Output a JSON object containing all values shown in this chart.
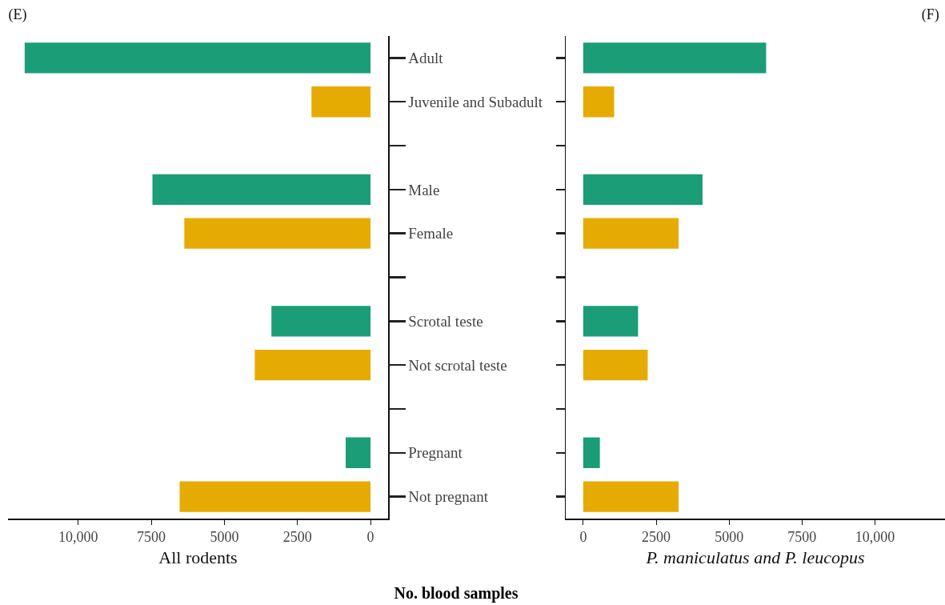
{
  "chart_data": [
    {
      "type": "bar",
      "title": "(E)",
      "xlabel": "All rodents",
      "orientation": "horizontal",
      "categories": [
        "Adult",
        "Juvenile and Subadult",
        null,
        "Male",
        "Female",
        null,
        "Scrotal teste",
        "Not scrotal teste",
        null,
        "Pregnant",
        "Not pregnant"
      ],
      "values": [
        11830,
        2020,
        null,
        7460,
        6370,
        null,
        3390,
        3960,
        null,
        850,
        6530
      ],
      "colors": [
        "#1b9e77",
        "#e6ab02",
        null,
        "#1b9e77",
        "#e6ab02",
        null,
        "#1b9e77",
        "#e6ab02",
        null,
        "#1b9e77",
        "#e6ab02"
      ],
      "xlim": [
        12400,
        -600
      ],
      "xticks": [
        {
          "value": 10000,
          "label": "10,000"
        },
        7500,
        5000,
        2500,
        0
      ],
      "grid": false,
      "annotations": [
        "No. blood samples"
      ]
    },
    {
      "type": "bar",
      "title": "(F)",
      "xlabel": "P. maniculatus and P. leucopus",
      "orientation": "horizontal",
      "categories": [
        null,
        null,
        null,
        null,
        null,
        null,
        null,
        null,
        null,
        null,
        null
      ],
      "values": [
        6270,
        1060,
        null,
        4090,
        3270,
        null,
        1880,
        2210,
        null,
        570,
        3270
      ],
      "colors": [
        "#1b9e77",
        "#e6ab02",
        null,
        "#1b9e77",
        "#e6ab02",
        null,
        "#1b9e77",
        "#e6ab02",
        null,
        "#1b9e77",
        "#e6ab02"
      ],
      "xlim": [
        -600,
        12400
      ],
      "xticks": [
        0,
        2500,
        5000,
        7500,
        {
          "value": 10000,
          "label": "10,000"
        }
      ],
      "grid": false,
      "tick_labels": "x"
    }
  ]
}
